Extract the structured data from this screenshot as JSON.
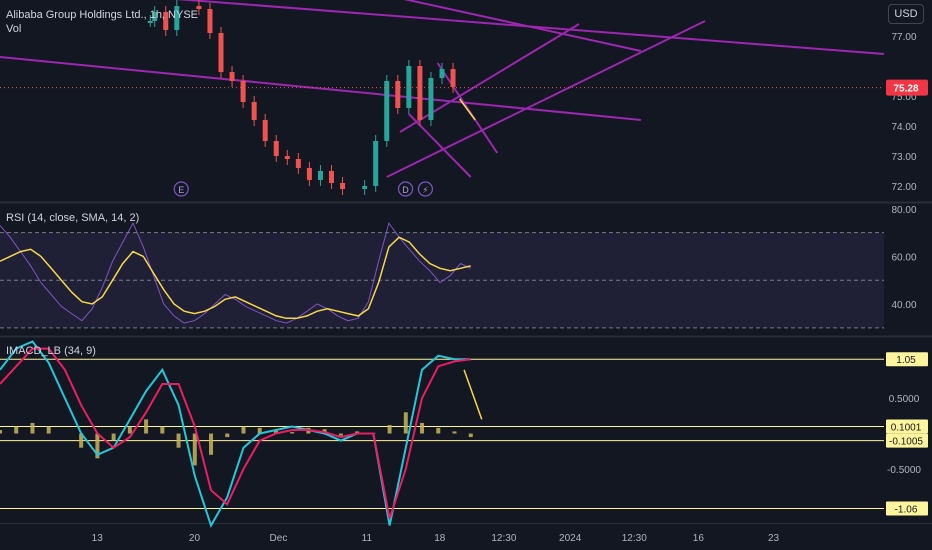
{
  "header": {
    "symbol_title": "Alibaba Group Holdings Ltd., 1h, NYSE",
    "vol_label": "Vol",
    "currency": "USD"
  },
  "colors": {
    "background": "#131722",
    "candle_up": "#26a69a",
    "candle_down": "#ef5350",
    "trendline": "#9c27b0",
    "rsi_line": "#7e57c2",
    "rsi_ma": "#f7d84a",
    "macd_line": "#26c6da",
    "signal_line": "#e91e63",
    "histogram": "#c9b55a",
    "arrow": "#f7d84a",
    "axis_text": "#b2b5be"
  },
  "chart_data": [
    {
      "id": "price",
      "type": "candlestick",
      "title": "Alibaba Group Holdings Ltd., 1h, NYSE",
      "ylim": [
        71.5,
        78.2
      ],
      "y_ticks": [
        72.0,
        73.0,
        74.0,
        75.0,
        76.0,
        77.0
      ],
      "y_tick_labels": [
        "72.00",
        "73.00",
        "74.00",
        "75.00",
        "",
        "77.00"
      ],
      "last_price": 75.28,
      "last_price_label": "75.28",
      "event_markers": [
        {
          "label": "E",
          "x": 8.2
        },
        {
          "label": "D",
          "x": 18.35
        },
        {
          "label": "⚡",
          "x": 19.25
        }
      ],
      "trendlines": [
        [
          [
            3.3,
            78.5
          ],
          [
            40,
            76.4
          ]
        ],
        [
          [
            16.0,
            78.6
          ],
          [
            29,
            76.5
          ]
        ],
        [
          [
            0.0,
            76.3
          ],
          [
            29,
            74.2
          ]
        ],
        [
          [
            18.5,
            74.4
          ],
          [
            21.3,
            72.3
          ]
        ],
        [
          [
            17.5,
            72.3
          ],
          [
            31.9,
            77.5
          ]
        ],
        [
          [
            18.1,
            73.8
          ],
          [
            26.2,
            77.4
          ]
        ],
        [
          [
            19.8,
            76.1
          ],
          [
            22.5,
            73.1
          ]
        ]
      ],
      "arrow": {
        "from": [
          20.8,
          74.9
        ],
        "to": [
          21.5,
          74.2
        ]
      },
      "candles_approx": [
        {
          "x": 6.8,
          "c": 77.5
        },
        {
          "x": 7.0,
          "c": 77.8
        },
        {
          "x": 7.5,
          "c": 77.2
        },
        {
          "x": 8.0,
          "c": 78.0
        },
        {
          "x": 9.0,
          "c": 77.9
        },
        {
          "x": 9.5,
          "c": 77.1
        },
        {
          "x": 10.0,
          "c": 75.8
        },
        {
          "x": 10.5,
          "c": 75.5
        },
        {
          "x": 11.0,
          "c": 74.8
        },
        {
          "x": 11.5,
          "c": 74.2
        },
        {
          "x": 12.0,
          "c": 73.5
        },
        {
          "x": 12.5,
          "c": 73.0
        },
        {
          "x": 13.0,
          "c": 72.9
        },
        {
          "x": 13.5,
          "c": 72.6
        },
        {
          "x": 14.0,
          "c": 72.2
        },
        {
          "x": 14.5,
          "c": 72.5
        },
        {
          "x": 15.0,
          "c": 72.1
        },
        {
          "x": 15.5,
          "c": 71.9
        },
        {
          "x": 16.5,
          "c": 72.0
        },
        {
          "x": 17.0,
          "c": 73.5
        },
        {
          "x": 17.5,
          "c": 75.5
        },
        {
          "x": 18.0,
          "c": 74.6
        },
        {
          "x": 18.5,
          "c": 76.0
        },
        {
          "x": 19.0,
          "c": 74.2
        },
        {
          "x": 19.5,
          "c": 75.6
        },
        {
          "x": 20.0,
          "c": 75.9
        },
        {
          "x": 20.5,
          "c": 75.3
        }
      ]
    },
    {
      "id": "rsi",
      "type": "line",
      "title": "RSI (14, close, SMA, 14, 2)",
      "ylim": [
        27,
        82
      ],
      "y_ticks": [
        40,
        60,
        80
      ],
      "y_tick_labels": [
        "40.00",
        "60.00",
        "80.00"
      ],
      "bands": {
        "upper": 70,
        "middle": 50,
        "lower": 30
      },
      "series": [
        {
          "values": [
            73,
            68,
            62,
            56,
            49,
            44,
            39,
            36,
            33,
            38,
            47,
            58,
            66,
            74,
            64,
            52,
            40,
            35,
            32,
            33,
            36,
            40,
            44,
            42,
            39,
            37,
            35,
            33,
            32,
            34,
            37,
            40,
            38,
            35,
            33,
            34,
            41,
            58,
            74,
            68,
            63,
            58,
            54,
            49,
            52,
            57,
            55
          ]
        },
        {
          "values": [
            58,
            60,
            62,
            63,
            60,
            55,
            50,
            45,
            41,
            40,
            43,
            50,
            57,
            62,
            60,
            53,
            46,
            40,
            37,
            36,
            37,
            39,
            42,
            43,
            41,
            39,
            37,
            35,
            34,
            34,
            35,
            37,
            38,
            37,
            36,
            35,
            38,
            49,
            64,
            68,
            66,
            61,
            57,
            55,
            54,
            55,
            56
          ]
        }
      ]
    },
    {
      "id": "macd",
      "type": "line",
      "title": "IMACD_LB (34, 9)",
      "ylim": [
        -1.25,
        1.35
      ],
      "y_ticks": [
        -0.5,
        0.5
      ],
      "y_tick_labels": [
        "-0.5000",
        "0.5000"
      ],
      "levels": [
        {
          "value": 1.05,
          "label": "1.05"
        },
        {
          "value": 0.1001,
          "label": "0.1001"
        },
        {
          "value": -0.1005,
          "label": "-0.1005"
        },
        {
          "value": -1.06,
          "label": "-1.06"
        }
      ],
      "arrow": {
        "from": [
          21.0,
          0.9
        ],
        "to": [
          21.8,
          0.2
        ]
      },
      "series": [
        {
          "values": [
            0.9,
            1.2,
            1.3,
            1.0,
            0.5,
            0.0,
            -0.3,
            -0.2,
            0.2,
            0.6,
            0.9,
            0.4,
            -0.6,
            -1.3,
            -0.9,
            -0.2,
            0.0,
            0.05,
            0.1,
            0.05,
            0.0,
            -0.1,
            0.0,
            0.0,
            -1.3,
            -0.2,
            0.9,
            1.1,
            1.05,
            1.05
          ]
        },
        {
          "values": [
            0.7,
            0.95,
            1.2,
            1.2,
            0.9,
            0.4,
            0.0,
            -0.2,
            -0.05,
            0.3,
            0.7,
            0.7,
            0.1,
            -0.8,
            -1.0,
            -0.5,
            -0.1,
            0.0,
            0.05,
            0.05,
            0.02,
            -0.05,
            0.0,
            0.0,
            -1.2,
            -0.5,
            0.5,
            0.95,
            1.02,
            1.05
          ]
        }
      ],
      "histogram": [
        0.05,
        0.1,
        0.15,
        0.1,
        0.0,
        -0.2,
        -0.35,
        -0.1,
        0.1,
        0.2,
        0.1,
        -0.2,
        -0.45,
        -0.3,
        -0.05,
        0.1,
        0.08,
        0.04,
        0.02,
        0.08,
        0.06,
        -0.03,
        0.03,
        0.01,
        0.12,
        0.3,
        0.15,
        0.08,
        0.03,
        -0.05
      ]
    }
  ],
  "x_axis": {
    "range": [
      0,
      40
    ],
    "ticks": [
      {
        "x": 4.4,
        "label": "13"
      },
      {
        "x": 8.8,
        "label": "20"
      },
      {
        "x": 12.6,
        "label": "Dec"
      },
      {
        "x": 16.6,
        "label": "11"
      },
      {
        "x": 19.9,
        "label": "18"
      },
      {
        "x": 22.8,
        "label": "12:30"
      },
      {
        "x": 25.8,
        "label": "2024"
      },
      {
        "x": 28.7,
        "label": "12:30"
      },
      {
        "x": 31.6,
        "label": "16"
      },
      {
        "x": 35.0,
        "label": "23"
      }
    ]
  }
}
